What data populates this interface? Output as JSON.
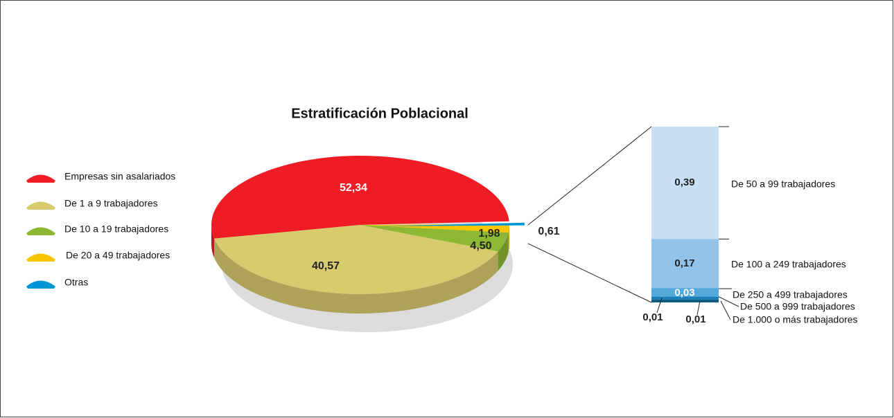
{
  "chart_data": [
    {
      "type": "pie",
      "title": "Estratificación Poblacional",
      "categories": [
        "Empresas sin asalariados",
        "De 1 a 9 trabajadores",
        "De 10 a 19 trabajadores",
        "De 20 a 49 trabajadores",
        "Otras"
      ],
      "values": [
        52.34,
        40.57,
        4.5,
        1.98,
        0.61
      ],
      "value_labels": [
        "52,34",
        "40,57",
        "4,50",
        "1,98",
        "0,61"
      ],
      "colors": [
        "#ee1c25",
        "#d8cb6e",
        "#8cb833",
        "#f7c600",
        "#0096d6"
      ]
    },
    {
      "type": "stacked-bar",
      "categories": [
        "De 50 a 99 trabajadores",
        "De 100 a 249 trabajadores",
        "De 250 a 499 trabajadores",
        "De 500 a 999 trabajadores",
        "De 1.000 o más trabajadores"
      ],
      "values": [
        0.39,
        0.17,
        0.03,
        0.01,
        0.01
      ],
      "value_labels": [
        "0,39",
        "0,17",
        "0,03",
        "0,01",
        "0,01"
      ],
      "colors": [
        "#c9e0f4",
        "#93c3e8",
        "#55a8dc",
        "#1a7fb5",
        "#0e5a85"
      ]
    }
  ]
}
